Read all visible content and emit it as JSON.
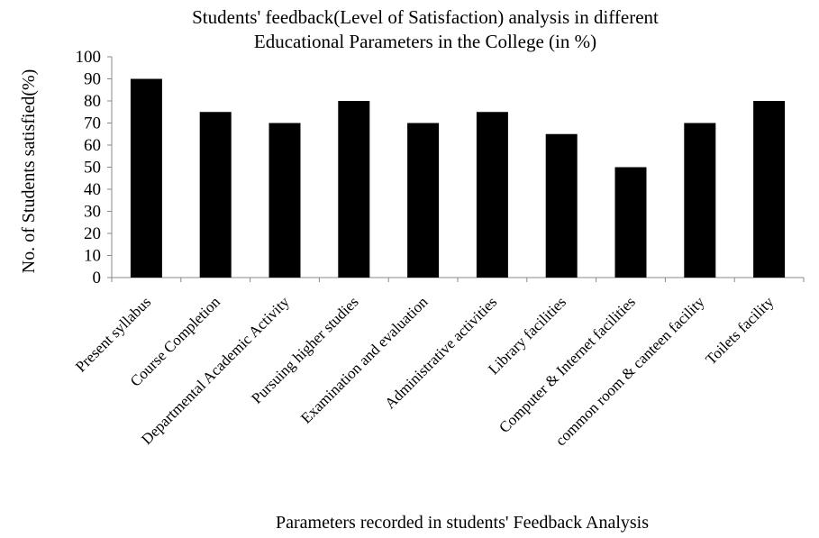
{
  "chart_data": {
    "type": "bar",
    "title_lines": [
      "Students' feedback(Level of Satisfaction) analysis in different",
      "Educational Parameters in the College (in %)"
    ],
    "xlabel": "Parameters recorded in students' Feedback Analysis",
    "ylabel": "No. of Students satisfied(%)",
    "ylim": [
      0,
      100
    ],
    "yticks": [
      0,
      10,
      20,
      30,
      40,
      50,
      60,
      70,
      80,
      90,
      100
    ],
    "categories": [
      "Present syllabus",
      "Course Completion",
      "Departmental Academic Activity",
      "Pursuing higher studies",
      "Examination and evaluation",
      "Administrative activities",
      "Library facilities",
      "Computer & Internet facilities",
      "common room & canteen facility",
      "Toilets facility"
    ],
    "values": [
      90,
      75,
      70,
      80,
      70,
      75,
      65,
      50,
      70,
      80
    ],
    "bar_color": "#000000",
    "grid": false,
    "legend": "none"
  }
}
